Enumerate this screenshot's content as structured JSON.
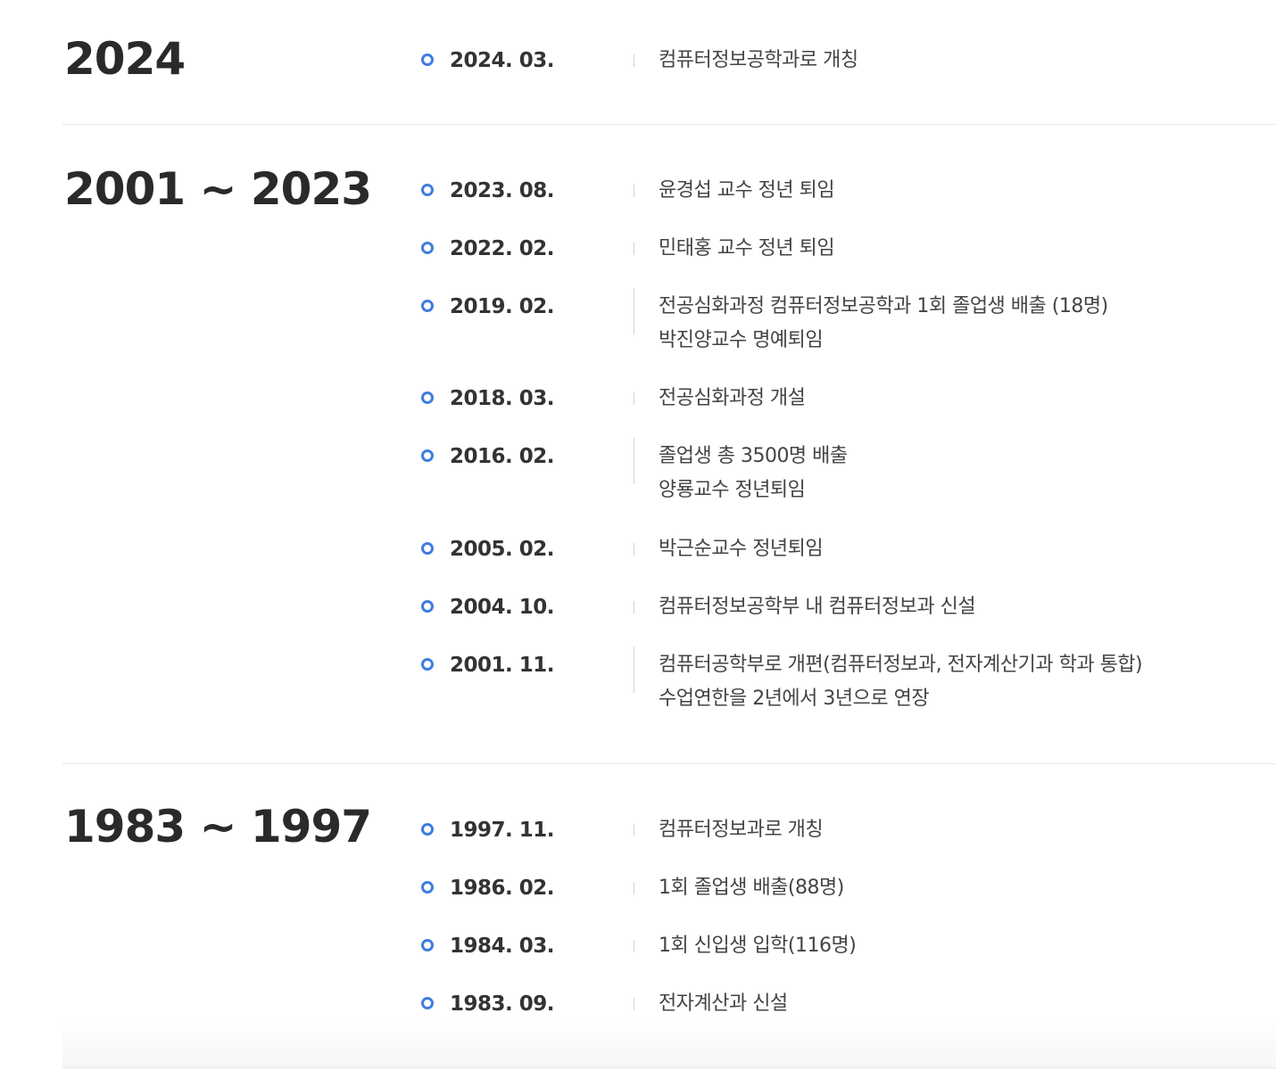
{
  "timeline": {
    "periods": [
      {
        "title": "2024",
        "events": [
          {
            "date": "2024. 03.",
            "lines": [
              "컴퓨터정보공학과로 개칭"
            ]
          }
        ]
      },
      {
        "title": "2001 ~ 2023",
        "events": [
          {
            "date": "2023. 08.",
            "lines": [
              "윤경섭 교수 정년 퇴임"
            ]
          },
          {
            "date": "2022. 02.",
            "lines": [
              "민태홍 교수 정년 퇴임"
            ]
          },
          {
            "date": "2019. 02.",
            "lines": [
              "전공심화과정 컴퓨터정보공학과 1회 졸업생 배출 (18명)",
              "박진양교수 명예퇴임"
            ]
          },
          {
            "date": "2018. 03.",
            "lines": [
              "전공심화과정 개설"
            ]
          },
          {
            "date": "2016. 02.",
            "lines": [
              "졸업생 총 3500명 배출",
              "양룡교수 정년퇴임"
            ]
          },
          {
            "date": "2005. 02.",
            "lines": [
              "박근순교수 정년퇴임"
            ]
          },
          {
            "date": "2004. 10.",
            "lines": [
              "컴퓨터정보공학부 내 컴퓨터정보과 신설"
            ]
          },
          {
            "date": "2001. 11.",
            "lines": [
              "컴퓨터공학부로 개편(컴퓨터정보과, 전자계산기과 학과 통합)",
              "수업연한을 2년에서 3년으로 연장"
            ]
          }
        ]
      },
      {
        "title": "1983 ~ 1997",
        "events": [
          {
            "date": "1997. 11.",
            "lines": [
              "컴퓨터정보과로 개칭"
            ]
          },
          {
            "date": "1986. 02.",
            "lines": [
              "1회 졸업생 배출(88명)"
            ]
          },
          {
            "date": "1984. 03.",
            "lines": [
              "1회 신입생 입학(116명)"
            ]
          },
          {
            "date": "1983. 09.",
            "lines": [
              "전자계산과 신설"
            ]
          }
        ]
      }
    ]
  },
  "colors": {
    "dot": "#3f7de0",
    "title": "#2a2a2a",
    "text": "#444444",
    "divider": "#e6e6e6"
  }
}
